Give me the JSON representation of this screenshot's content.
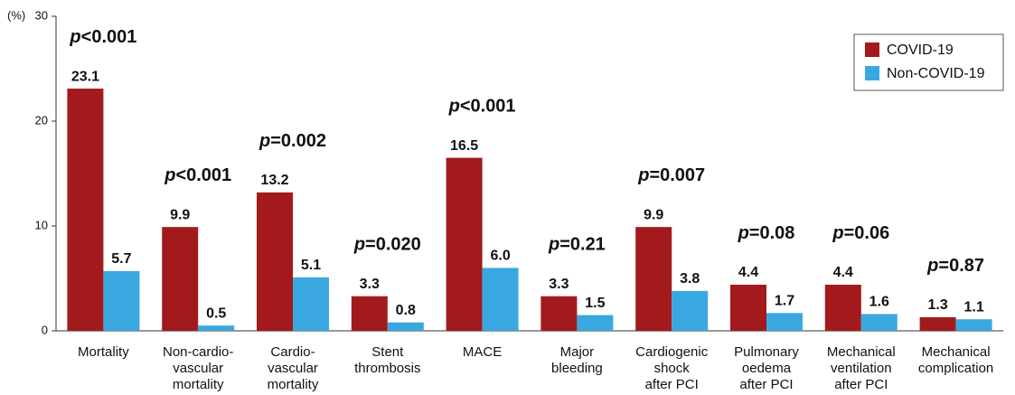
{
  "chart_data": {
    "type": "grouped_bar",
    "y_label": "(%)",
    "categories": [
      [
        "Mortality"
      ],
      [
        "Non-cardio-",
        "vascular",
        "mortality"
      ],
      [
        "Cardio-",
        "vascular",
        "mortality"
      ],
      [
        "Stent",
        "thrombosis"
      ],
      [
        "MACE"
      ],
      [
        "Major",
        "bleeding"
      ],
      [
        "Cardiogenic",
        "shock",
        "after PCI"
      ],
      [
        "Pulmonary",
        "oedema",
        "after PCI"
      ],
      [
        "Mechanical",
        "ventilation",
        "after PCI"
      ],
      [
        "Mechanical",
        "complication"
      ]
    ],
    "series": [
      {
        "name": "COVID-19",
        "color": "#a31a1d",
        "values": [
          23.1,
          9.9,
          13.2,
          3.3,
          16.5,
          3.3,
          9.9,
          4.4,
          4.4,
          1.3
        ],
        "value_labels": [
          "23.1",
          "9.9",
          "13.2",
          "3.3",
          "16.5",
          "3.3",
          "9.9",
          "4.4",
          "4.4",
          "1.3"
        ]
      },
      {
        "name": "Non-COVID-19",
        "color": "#3aa8e0",
        "values": [
          5.7,
          0.5,
          5.1,
          0.8,
          6.0,
          1.5,
          3.8,
          1.7,
          1.6,
          1.1
        ],
        "value_labels": [
          "5.7",
          "0.5",
          "5.1",
          "0.8",
          "6.0",
          "1.5",
          "3.8",
          "1.7",
          "1.6",
          "1.1"
        ]
      }
    ],
    "annotations": [
      "p<0.001",
      "p<0.001",
      "p=0.002",
      "p=0.020",
      "p<0.001",
      "p=0.21",
      "p=0.007",
      "p=0.08",
      "p=0.06",
      "p=0.87"
    ],
    "ylim": [
      0,
      30
    ],
    "yticks": [
      0,
      10,
      20,
      30
    ],
    "legend": "top-right"
  }
}
